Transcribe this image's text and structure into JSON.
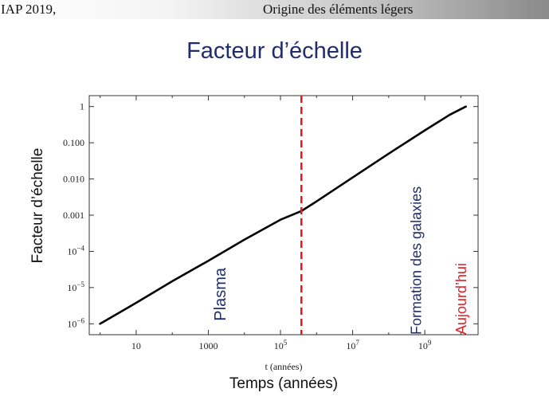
{
  "header": {
    "left_text": "IAP 2019,",
    "right_text": "Origine des éléments légers"
  },
  "slide_title": "Facteur d’échelle",
  "chart_data": {
    "type": "line",
    "title": "",
    "xlabel": "t (années)",
    "xlabel_slide": "Temps (années)",
    "ylabel": "Facteur d’échelle",
    "x_scale": "log",
    "y_scale": "log",
    "xlim": [
      0.5,
      30000000000
    ],
    "ylim": [
      5e-07,
      2
    ],
    "grid": false,
    "x_ticks": [
      {
        "value": 10,
        "base": "10",
        "exp": ""
      },
      {
        "value": 1000,
        "base": "1000",
        "exp": ""
      },
      {
        "value": 100000,
        "base": "10",
        "exp": "5"
      },
      {
        "value": 10000000,
        "base": "10",
        "exp": "7"
      },
      {
        "value": 1000000000,
        "base": "10",
        "exp": "9"
      }
    ],
    "y_ticks": [
      {
        "value": 1e-06,
        "base": "10",
        "exp": "−6"
      },
      {
        "value": 1e-05,
        "base": "10",
        "exp": "−5"
      },
      {
        "value": 0.0001,
        "base": "10",
        "exp": "−4"
      },
      {
        "value": 0.001,
        "base": "0.001",
        "exp": ""
      },
      {
        "value": 0.01,
        "base": "0.010",
        "exp": ""
      },
      {
        "value": 0.1,
        "base": "0.100",
        "exp": ""
      },
      {
        "value": 1,
        "base": "1",
        "exp": ""
      }
    ],
    "series": [
      {
        "color": "#000000",
        "x": [
          1,
          10,
          100,
          1000,
          10000,
          100000,
          380000,
          1000000,
          10000000,
          100000000,
          1000000000,
          5000000000,
          13800000000
        ],
        "y": [
          1e-06,
          3.8e-06,
          1.5e-05,
          5.5e-05,
          0.00021,
          0.00075,
          0.0013,
          0.0024,
          0.011,
          0.05,
          0.22,
          0.6,
          1
        ]
      }
    ],
    "markers": [
      {
        "type": "vline",
        "x": 380000,
        "color": "#dd1f26",
        "style": "dashed"
      }
    ],
    "annotations": [
      {
        "text": "Plasma",
        "x": 3000,
        "y": 1.2e-06,
        "color": "#1f2d6b",
        "rotation": -90,
        "size": 20
      },
      {
        "text": "Formation des galaxies",
        "x": 800000000,
        "y": 5e-07,
        "color": "#1f2d6b",
        "rotation": -90,
        "size": 18
      },
      {
        "text": "Aujourd’hui",
        "x": 14000000000,
        "y": 5e-07,
        "color": "#dd1f26",
        "rotation": -90,
        "size": 18
      }
    ]
  }
}
